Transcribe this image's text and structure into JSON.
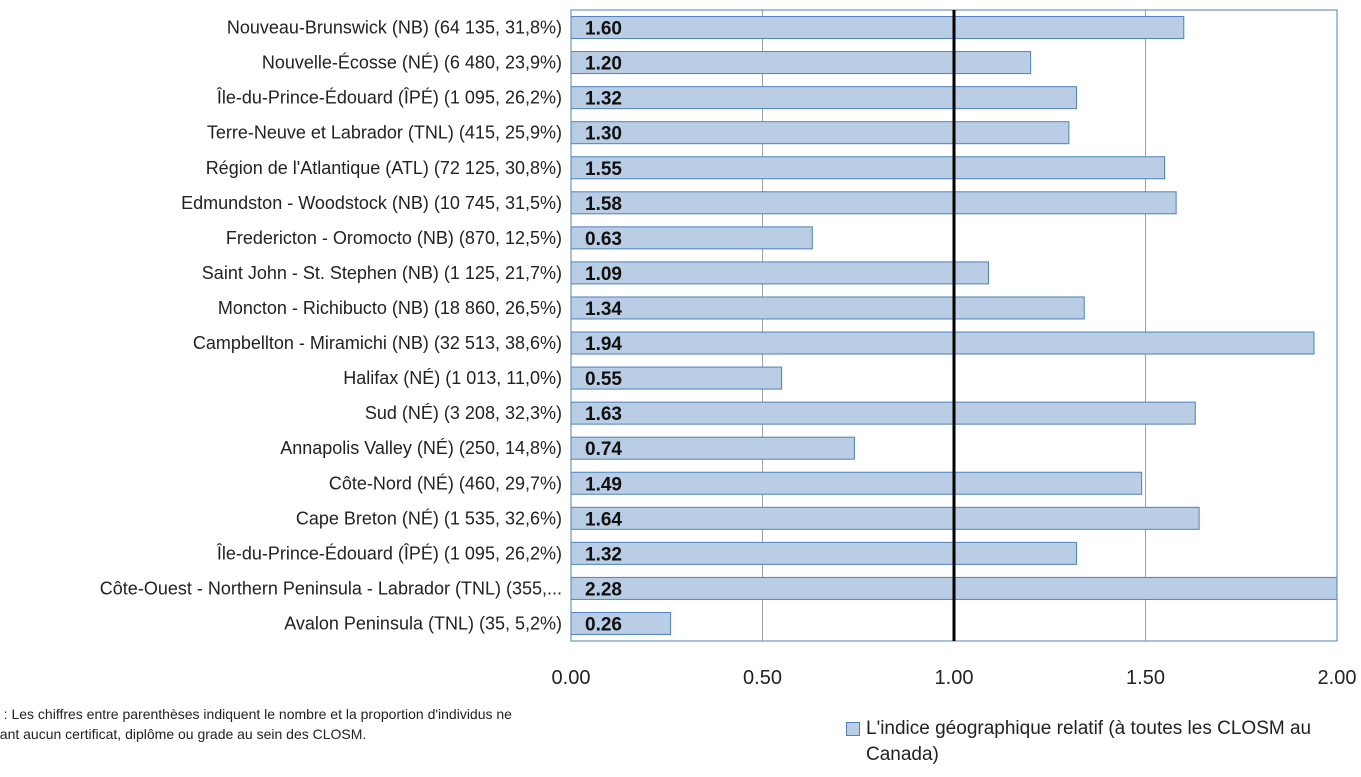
{
  "note": "e : Les chiffres entre parenthèses indiquent le nombre et la proportion d'individus ne\nnant aucun certificat, diplôme ou grade au sein des CLOSM.",
  "colors": {
    "bar_fill": "#b9cde5",
    "bar_stroke": "#4f81bd",
    "reference_line": "#000000",
    "grid": "#a0a0a0",
    "frame": "#4f81bd"
  },
  "chart_data": {
    "type": "bar",
    "orientation": "horizontal",
    "categories": [
      "Nouveau-Brunswick (NB) (64 135, 31,8%)",
      "Nouvelle-Écosse (NÉ) (6 480, 23,9%)",
      "Île-du-Prince-Édouard (ÎPÉ) (1 095, 26,2%)",
      "Terre-Neuve et Labrador (TNL) (415, 25,9%)",
      "Région de l'Atlantique (ATL) (72 125, 30,8%)",
      "Edmundston - Woodstock (NB) (10 745, 31,5%)",
      "Fredericton - Oromocto (NB) (870, 12,5%)",
      "Saint John - St. Stephen (NB) (1 125, 21,7%)",
      "Moncton - Richibucto (NB) (18 860, 26,5%)",
      "Campbellton - Miramichi (NB) (32 513, 38,6%)",
      "Halifax (NÉ) (1 013, 11,0%)",
      "Sud (NÉ) (3 208, 32,3%)",
      "Annapolis Valley (NÉ) (250, 14,8%)",
      "Côte-Nord (NÉ) (460, 29,7%)",
      "Cape Breton (NÉ) (1 535, 32,6%)",
      "Île-du-Prince-Édouard (ÎPÉ) (1 095, 26,2%)",
      "Côte-Ouest - Northern Peninsula - Labrador (TNL) (355,...",
      "Avalon Peninsula (TNL) (35, 5,2%)"
    ],
    "values": [
      1.6,
      1.2,
      1.32,
      1.3,
      1.55,
      1.58,
      0.63,
      1.09,
      1.34,
      1.94,
      0.55,
      1.63,
      0.74,
      1.49,
      1.64,
      1.32,
      2.28,
      0.26
    ],
    "data_labels": [
      "1.60",
      "1.20",
      "1.32",
      "1.30",
      "1.55",
      "1.58",
      "0.63",
      "1.09",
      "1.34",
      "1.94",
      "0.55",
      "1.63",
      "0.74",
      "1.49",
      "1.64",
      "1.32",
      "2.28",
      "0.26"
    ],
    "series": [
      {
        "name": "L'indice géographique relatif (à toutes les CLOSM au Canada)"
      }
    ],
    "xlim": [
      0,
      2.0
    ],
    "x_ticks": [
      "0.00",
      "0.50",
      "1.00",
      "1.50",
      "2.00"
    ],
    "reference_line": 1.0,
    "grid": true,
    "legend_position": "bottom-right"
  }
}
